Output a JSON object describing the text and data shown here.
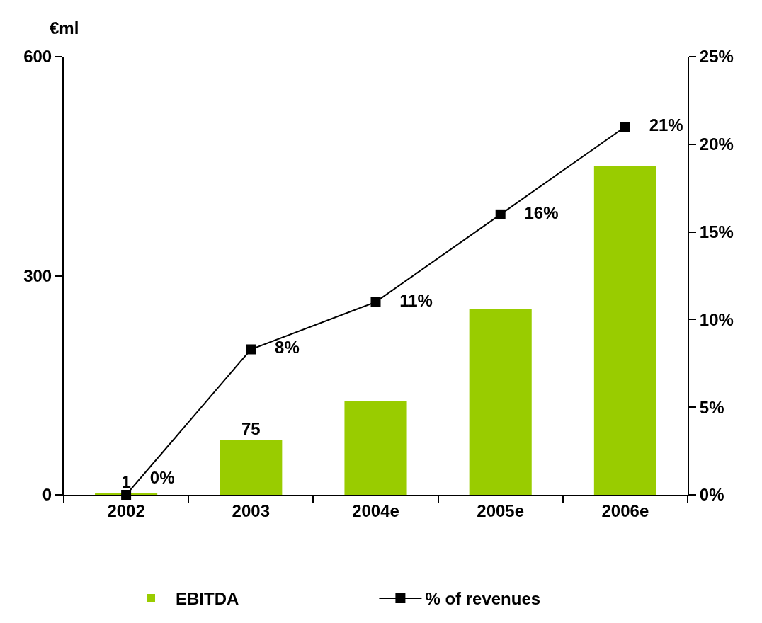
{
  "chart_data": {
    "type": "bar",
    "ylabel": "€ml",
    "categories": [
      "2002",
      "2003",
      "2004e",
      "2005e",
      "2006e"
    ],
    "series": [
      {
        "name": "EBITDA",
        "color": "#99cc00",
        "values": [
          1,
          75,
          129,
          255,
          450
        ],
        "value_labels": [
          "1",
          "75",
          null,
          null,
          null
        ]
      },
      {
        "name": "% of revenues",
        "type": "line",
        "axis": "y2",
        "color": "#000000",
        "marker": "square",
        "values": [
          0,
          8.3,
          11,
          16,
          21
        ],
        "value_labels": [
          "0%",
          "8%",
          "11%",
          "16%",
          "21%"
        ]
      }
    ],
    "ylim": [
      0,
      600
    ],
    "yticks": [
      0,
      300,
      600
    ],
    "y2lim": [
      0,
      25
    ],
    "y2ticks": [
      {
        "value": 0,
        "label": "0%"
      },
      {
        "value": 5,
        "label": "5%"
      },
      {
        "value": 10,
        "label": "10%"
      },
      {
        "value": 15,
        "label": "15%"
      },
      {
        "value": 20,
        "label": "20%"
      },
      {
        "value": 25,
        "label": "25%"
      }
    ],
    "legend": "bottom"
  }
}
